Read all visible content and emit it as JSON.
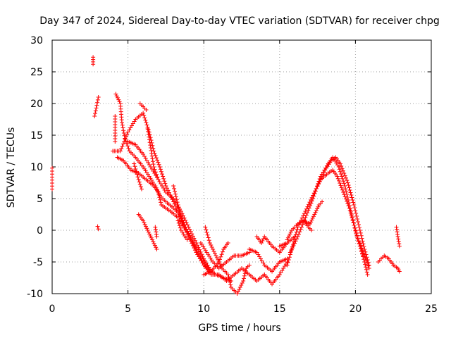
{
  "chart_data": {
    "type": "scatter",
    "title": "Day 347 of 2024, Sidereal Day-to-day VTEC variation (SDTVAR) for receiver chpg",
    "xlabel": "GPS time / hours",
    "ylabel": "SDTVAR / TECUs",
    "xlim": [
      0,
      25
    ],
    "ylim": [
      -10,
      30
    ],
    "xticks": [
      "0",
      "5",
      "10",
      "15",
      "20",
      "25"
    ],
    "yticks": [
      "-10",
      "-5",
      "0",
      "5",
      "10",
      "15",
      "20",
      "25",
      "30"
    ],
    "grid": true,
    "marker": "+",
    "marker_color": "#ff0000",
    "series": [
      {
        "name": "SDTVAR",
        "tracks": [
          [
            [
              0.0,
              9.8
            ],
            [
              0.0,
              6.5
            ]
          ],
          [
            [
              2.7,
              27.3
            ],
            [
              2.7,
              26.2
            ]
          ],
          [
            [
              2.8,
              18.0
            ],
            [
              3.05,
              21.0
            ]
          ],
          [
            [
              3.0,
              0.6
            ],
            [
              3.05,
              0.2
            ]
          ],
          [
            [
              4.15,
              18.0
            ],
            [
              4.15,
              14.0
            ]
          ],
          [
            [
              4.2,
              21.5
            ],
            [
              4.5,
              20.0
            ],
            [
              4.6,
              17.0
            ],
            [
              4.8,
              14.5
            ],
            [
              5.1,
              12.5
            ],
            [
              5.5,
              11.5
            ],
            [
              6.0,
              10.0
            ],
            [
              6.4,
              8.5
            ],
            [
              6.8,
              7.0
            ],
            [
              7.1,
              5.5
            ],
            [
              7.5,
              4.5
            ],
            [
              8.0,
              3.5
            ],
            [
              8.4,
              2.5
            ],
            [
              8.8,
              0.5
            ],
            [
              9.2,
              -1.5
            ],
            [
              9.7,
              -4.0
            ],
            [
              10.2,
              -6.0
            ],
            [
              10.6,
              -7.0
            ],
            [
              11.0,
              -7.0
            ]
          ],
          [
            [
              4.0,
              12.5
            ],
            [
              4.5,
              12.5
            ],
            [
              5.0,
              15.5
            ],
            [
              5.5,
              17.5
            ],
            [
              6.0,
              18.5
            ],
            [
              6.4,
              15.5
            ],
            [
              6.7,
              12.5
            ],
            [
              7.1,
              10.0
            ],
            [
              7.5,
              7.0
            ],
            [
              8.0,
              4.5
            ],
            [
              8.5,
              2.0
            ],
            [
              9.0,
              -1.0
            ],
            [
              9.5,
              -3.5
            ],
            [
              10.0,
              -5.5
            ],
            [
              10.5,
              -7.0
            ]
          ],
          [
            [
              5.0,
              14.0
            ],
            [
              5.5,
              13.5
            ],
            [
              6.0,
              12.0
            ],
            [
              6.5,
              10.0
            ],
            [
              7.0,
              8.0
            ],
            [
              7.5,
              6.0
            ],
            [
              8.0,
              5.0
            ],
            [
              8.5,
              3.0
            ],
            [
              9.0,
              0.5
            ],
            [
              9.5,
              -2.0
            ],
            [
              10.0,
              -4.5
            ],
            [
              10.5,
              -6.5
            ]
          ],
          [
            [
              4.3,
              11.5
            ],
            [
              4.7,
              11.0
            ],
            [
              5.2,
              9.5
            ],
            [
              5.7,
              9.0
            ],
            [
              6.2,
              8.0
            ],
            [
              6.7,
              7.0
            ],
            [
              7.0,
              6.0
            ],
            [
              7.2,
              4.0
            ],
            [
              7.8,
              3.0
            ],
            [
              8.3,
              2.0
            ],
            [
              8.8,
              0.0
            ],
            [
              9.3,
              -2.0
            ],
            [
              9.8,
              -4.0
            ],
            [
              10.3,
              -6.0
            ],
            [
              10.8,
              -7.0
            ],
            [
              11.3,
              -7.5
            ],
            [
              11.8,
              -8.0
            ]
          ],
          [
            [
              5.4,
              10.5
            ],
            [
              5.7,
              8.0
            ],
            [
              5.9,
              6.5
            ]
          ],
          [
            [
              5.8,
              20.0
            ],
            [
              6.2,
              19.0
            ]
          ],
          [
            [
              6.3,
              16.0
            ],
            [
              6.5,
              13.0
            ],
            [
              6.7,
              10.0
            ],
            [
              7.0,
              8.0
            ]
          ],
          [
            [
              5.7,
              2.5
            ],
            [
              6.0,
              1.5
            ],
            [
              6.3,
              0.0
            ],
            [
              6.6,
              -1.5
            ],
            [
              6.9,
              -3.0
            ]
          ],
          [
            [
              6.8,
              0.5
            ],
            [
              6.9,
              -1.0
            ]
          ],
          [
            [
              8.0,
              7.0
            ],
            [
              8.3,
              4.0
            ],
            [
              8.6,
              1.0
            ]
          ],
          [
            [
              8.3,
              1.5
            ],
            [
              8.5,
              0.0
            ],
            [
              8.9,
              -1.5
            ]
          ],
          [
            [
              10.1,
              0.5
            ],
            [
              10.4,
              -2.0
            ],
            [
              10.8,
              -4.0
            ],
            [
              11.2,
              -6.0
            ],
            [
              11.6,
              -7.0
            ],
            [
              11.8,
              -9.0
            ],
            [
              12.2,
              -10.0
            ],
            [
              12.6,
              -8.0
            ],
            [
              12.8,
              -6.0
            ],
            [
              13.0,
              -5.5
            ]
          ],
          [
            [
              9.8,
              -2.0
            ],
            [
              10.2,
              -3.5
            ],
            [
              10.6,
              -5.0
            ],
            [
              11.0,
              -6.0
            ],
            [
              11.5,
              -5.0
            ],
            [
              12.0,
              -4.0
            ],
            [
              12.5,
              -4.0
            ],
            [
              13.0,
              -3.5
            ]
          ],
          [
            [
              11.0,
              -7.0
            ],
            [
              11.5,
              -8.0
            ],
            [
              12.0,
              -7.0
            ],
            [
              12.5,
              -6.0
            ],
            [
              13.0,
              -7.0
            ],
            [
              13.5,
              -8.0
            ],
            [
              14.0,
              -7.0
            ]
          ],
          [
            [
              10.0,
              -7.0
            ],
            [
              10.5,
              -6.5
            ],
            [
              11.0,
              -5.0
            ],
            [
              11.3,
              -3.0
            ],
            [
              11.6,
              -2.0
            ]
          ],
          [
            [
              13.5,
              -1.0
            ],
            [
              13.8,
              -2.0
            ],
            [
              14.0,
              -1.0
            ],
            [
              14.5,
              -2.5
            ],
            [
              15.0,
              -3.5
            ],
            [
              15.5,
              -2.0
            ]
          ],
          [
            [
              13.0,
              -3.0
            ],
            [
              13.5,
              -3.5
            ],
            [
              14.0,
              -5.5
            ],
            [
              14.5,
              -6.5
            ],
            [
              15.0,
              -5.0
            ],
            [
              15.5,
              -4.5
            ]
          ],
          [
            [
              14.0,
              -7.0
            ],
            [
              14.5,
              -8.5
            ],
            [
              15.0,
              -7.0
            ],
            [
              15.5,
              -5.0
            ]
          ],
          [
            [
              15.0,
              -2.5
            ],
            [
              15.5,
              -2.0
            ],
            [
              16.0,
              -1.0
            ]
          ],
          [
            [
              15.5,
              -1.5
            ],
            [
              15.8,
              0.0
            ],
            [
              16.2,
              1.0
            ],
            [
              16.6,
              1.5
            ],
            [
              17.0,
              1.0
            ]
          ],
          [
            [
              15.5,
              -5.5
            ],
            [
              15.8,
              -3.0
            ],
            [
              16.2,
              0.5
            ],
            [
              16.7,
              3.0
            ],
            [
              17.2,
              5.5
            ],
            [
              17.7,
              8.0
            ],
            [
              18.2,
              9.0
            ],
            [
              18.5,
              9.5
            ],
            [
              18.8,
              8.5
            ],
            [
              19.2,
              6.0
            ],
            [
              19.6,
              3.5
            ],
            [
              20.0,
              0.0
            ],
            [
              20.3,
              -2.5
            ],
            [
              20.6,
              -5.0
            ],
            [
              20.8,
              -7.0
            ]
          ],
          [
            [
              15.7,
              -3.5
            ],
            [
              16.2,
              -1.0
            ],
            [
              16.7,
              2.0
            ],
            [
              17.2,
              5.0
            ],
            [
              17.7,
              8.5
            ],
            [
              18.2,
              10.5
            ],
            [
              18.5,
              11.5
            ],
            [
              18.9,
              10.0
            ],
            [
              19.3,
              7.0
            ],
            [
              19.7,
              3.0
            ],
            [
              20.1,
              -1.0
            ],
            [
              20.5,
              -4.0
            ]
          ],
          [
            [
              17.0,
              1.0
            ],
            [
              17.3,
              2.5
            ],
            [
              17.6,
              4.0
            ],
            [
              17.8,
              4.5
            ]
          ],
          [
            [
              16.6,
              1.5
            ],
            [
              16.9,
              0.5
            ],
            [
              17.1,
              0.0
            ]
          ],
          [
            [
              17.5,
              7.0
            ],
            [
              18.0,
              9.5
            ],
            [
              18.4,
              11.0
            ],
            [
              18.7,
              11.5
            ],
            [
              19.0,
              10.5
            ],
            [
              19.5,
              7.5
            ],
            [
              19.9,
              4.0
            ],
            [
              20.3,
              0.0
            ],
            [
              20.6,
              -3.0
            ],
            [
              20.9,
              -5.5
            ]
          ],
          [
            [
              20.3,
              -2.0
            ],
            [
              20.6,
              -4.0
            ],
            [
              20.9,
              -6.0
            ]
          ],
          [
            [
              21.5,
              -5.0
            ],
            [
              21.9,
              -4.0
            ],
            [
              22.2,
              -4.5
            ],
            [
              22.5,
              -5.5
            ],
            [
              22.8,
              -6.0
            ],
            [
              22.9,
              -6.5
            ]
          ],
          [
            [
              22.7,
              0.5
            ],
            [
              22.8,
              -1.0
            ],
            [
              22.9,
              -2.5
            ]
          ]
        ]
      }
    ]
  }
}
